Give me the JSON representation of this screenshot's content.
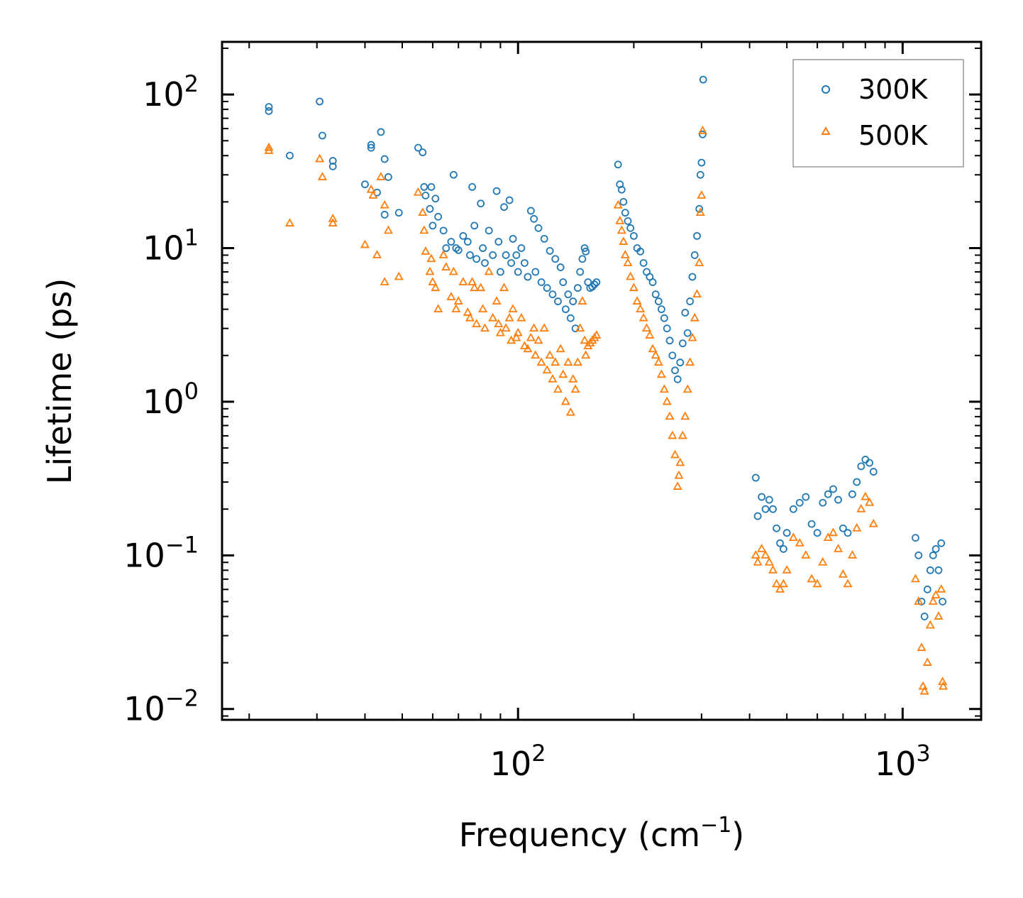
{
  "chart_data": {
    "type": "scatter",
    "title": "",
    "xlabel": "Frequency (cm",
    "xlabel_exponent": "−1",
    "xlabel_suffix": ")",
    "ylabel": "Lifetime (ps)",
    "xscale": "log",
    "yscale": "log",
    "xlim": [
      17,
      1600
    ],
    "ylim": [
      0.0085,
      220
    ],
    "x_ticks": [
      {
        "value": 100,
        "base": "10",
        "exp": "2"
      },
      {
        "value": 1000,
        "base": "10",
        "exp": "3"
      }
    ],
    "y_ticks": [
      {
        "value": 0.01,
        "base": "10",
        "exp": "−2"
      },
      {
        "value": 0.1,
        "base": "10",
        "exp": "−1"
      },
      {
        "value": 1,
        "base": "10",
        "exp": "0"
      },
      {
        "value": 10,
        "base": "10",
        "exp": "1"
      },
      {
        "value": 100,
        "base": "10",
        "exp": "2"
      }
    ],
    "legend_position": "top-right",
    "series": [
      {
        "name": "300K",
        "marker": "circle",
        "color": "#1f77b4",
        "points": [
          [
            22.5,
            83
          ],
          [
            22.5,
            78
          ],
          [
            25.5,
            40
          ],
          [
            30.5,
            90
          ],
          [
            31,
            54
          ],
          [
            33,
            37
          ],
          [
            33,
            34
          ],
          [
            40,
            26
          ],
          [
            41.5,
            47
          ],
          [
            41.5,
            45
          ],
          [
            43,
            23
          ],
          [
            44,
            57
          ],
          [
            45,
            38
          ],
          [
            45,
            16.5
          ],
          [
            46,
            29
          ],
          [
            49,
            17
          ],
          [
            55,
            45
          ],
          [
            56.5,
            42
          ],
          [
            57,
            25
          ],
          [
            57.5,
            22
          ],
          [
            59.5,
            25
          ],
          [
            59,
            18
          ],
          [
            60,
            14
          ],
          [
            61,
            21
          ],
          [
            62,
            16
          ],
          [
            64,
            13
          ],
          [
            65,
            10
          ],
          [
            67,
            11
          ],
          [
            68,
            30
          ],
          [
            69,
            10
          ],
          [
            70,
            9.7
          ],
          [
            72,
            12
          ],
          [
            74,
            11
          ],
          [
            75,
            9
          ],
          [
            76,
            25
          ],
          [
            77,
            14
          ],
          [
            78,
            8.5
          ],
          [
            80,
            19.5
          ],
          [
            81,
            10
          ],
          [
            82,
            8
          ],
          [
            84,
            13
          ],
          [
            86,
            9
          ],
          [
            88,
            23.5
          ],
          [
            89,
            11
          ],
          [
            90,
            7
          ],
          [
            92,
            18.5
          ],
          [
            93,
            9
          ],
          [
            95,
            20.5
          ],
          [
            96,
            8
          ],
          [
            97,
            11.5
          ],
          [
            99,
            9
          ],
          [
            100,
            7
          ],
          [
            102,
            10
          ],
          [
            104,
            8
          ],
          [
            106,
            6.5
          ],
          [
            108,
            17.5
          ],
          [
            110,
            15.5
          ],
          [
            111,
            7
          ],
          [
            113,
            13.5
          ],
          [
            115,
            6
          ],
          [
            117,
            11.5
          ],
          [
            119,
            5.5
          ],
          [
            121,
            9.6
          ],
          [
            123,
            5
          ],
          [
            125,
            8.5
          ],
          [
            127,
            4.5
          ],
          [
            129,
            7.5
          ],
          [
            131,
            6
          ],
          [
            133,
            4
          ],
          [
            135,
            5
          ],
          [
            137,
            3.5
          ],
          [
            139,
            4.5
          ],
          [
            141,
            3
          ],
          [
            143,
            5.5
          ],
          [
            145,
            7
          ],
          [
            147,
            8.5
          ],
          [
            149,
            10
          ],
          [
            150,
            9.5
          ],
          [
            152,
            6
          ],
          [
            154,
            5.5
          ],
          [
            156,
            5.6
          ],
          [
            158,
            5.8
          ],
          [
            160,
            6
          ],
          [
            182,
            35
          ],
          [
            184,
            26
          ],
          [
            186,
            24
          ],
          [
            188,
            20
          ],
          [
            190,
            17
          ],
          [
            193,
            15
          ],
          [
            196,
            13.5
          ],
          [
            200,
            12
          ],
          [
            204,
            10
          ],
          [
            208,
            9.5
          ],
          [
            212,
            8
          ],
          [
            216,
            7
          ],
          [
            220,
            6.5
          ],
          [
            224,
            6
          ],
          [
            228,
            5
          ],
          [
            232,
            4.5
          ],
          [
            236,
            4
          ],
          [
            240,
            3.5
          ],
          [
            244,
            3
          ],
          [
            248,
            2.5
          ],
          [
            252,
            2
          ],
          [
            256,
            1.6
          ],
          [
            260,
            1.4
          ],
          [
            264,
            1.8
          ],
          [
            268,
            2.4
          ],
          [
            272,
            3.8
          ],
          [
            276,
            2.8
          ],
          [
            280,
            4.5
          ],
          [
            284,
            6.5
          ],
          [
            288,
            9
          ],
          [
            292,
            12
          ],
          [
            296,
            18
          ],
          [
            298,
            30
          ],
          [
            300,
            36
          ],
          [
            302,
            55
          ],
          [
            303,
            125
          ],
          [
            415,
            0.32
          ],
          [
            420,
            0.18
          ],
          [
            430,
            0.24
          ],
          [
            440,
            0.2
          ],
          [
            450,
            0.23
          ],
          [
            460,
            0.2
          ],
          [
            470,
            0.15
          ],
          [
            480,
            0.12
          ],
          [
            490,
            0.11
          ],
          [
            500,
            0.14
          ],
          [
            520,
            0.2
          ],
          [
            540,
            0.22
          ],
          [
            560,
            0.24
          ],
          [
            580,
            0.16
          ],
          [
            600,
            0.14
          ],
          [
            620,
            0.22
          ],
          [
            640,
            0.25
          ],
          [
            660,
            0.27
          ],
          [
            680,
            0.23
          ],
          [
            700,
            0.15
          ],
          [
            720,
            0.14
          ],
          [
            740,
            0.25
          ],
          [
            760,
            0.3
          ],
          [
            780,
            0.38
          ],
          [
            800,
            0.42
          ],
          [
            820,
            0.4
          ],
          [
            840,
            0.35
          ],
          [
            1080,
            0.13
          ],
          [
            1100,
            0.1
          ],
          [
            1120,
            0.05
          ],
          [
            1140,
            0.04
          ],
          [
            1160,
            0.06
          ],
          [
            1180,
            0.08
          ],
          [
            1200,
            0.1
          ],
          [
            1220,
            0.11
          ],
          [
            1240,
            0.08
          ],
          [
            1260,
            0.12
          ],
          [
            1270,
            0.05
          ]
        ]
      },
      {
        "name": "500K",
        "marker": "triangle",
        "color": "#ff7f0e",
        "points": [
          [
            22.5,
            45
          ],
          [
            22.5,
            43
          ],
          [
            25.5,
            14.5
          ],
          [
            30.5,
            38
          ],
          [
            31,
            29
          ],
          [
            33,
            15.5
          ],
          [
            33,
            14.5
          ],
          [
            40,
            10.5
          ],
          [
            41.5,
            24
          ],
          [
            42,
            22
          ],
          [
            43,
            9
          ],
          [
            44,
            29
          ],
          [
            45,
            19
          ],
          [
            45,
            6
          ],
          [
            46,
            13
          ],
          [
            49,
            6.5
          ],
          [
            55,
            23
          ],
          [
            56.5,
            17
          ],
          [
            57,
            13
          ],
          [
            57.5,
            9.5
          ],
          [
            59.5,
            8.5
          ],
          [
            59,
            7
          ],
          [
            60,
            6
          ],
          [
            61,
            5.5
          ],
          [
            62,
            4
          ],
          [
            64,
            9
          ],
          [
            65,
            7.5
          ],
          [
            67,
            4.8
          ],
          [
            68,
            7
          ],
          [
            69,
            4
          ],
          [
            70,
            4.5
          ],
          [
            72,
            6
          ],
          [
            74,
            3.8
          ],
          [
            75,
            3.5
          ],
          [
            76,
            6
          ],
          [
            77,
            5.5
          ],
          [
            78,
            3.2
          ],
          [
            80,
            5.5
          ],
          [
            81,
            4
          ],
          [
            82,
            3
          ],
          [
            84,
            7
          ],
          [
            86,
            3.5
          ],
          [
            88,
            4.5
          ],
          [
            89,
            3.2
          ],
          [
            90,
            2.8
          ],
          [
            92,
            5.5
          ],
          [
            93,
            3
          ],
          [
            95,
            3.5
          ],
          [
            96,
            2.5
          ],
          [
            97,
            4
          ],
          [
            99,
            2.6
          ],
          [
            100,
            2.8
          ],
          [
            102,
            3.5
          ],
          [
            104,
            2.3
          ],
          [
            106,
            2.2
          ],
          [
            108,
            2.6
          ],
          [
            110,
            3
          ],
          [
            111,
            2
          ],
          [
            113,
            2.5
          ],
          [
            115,
            1.8
          ],
          [
            117,
            3
          ],
          [
            119,
            1.6
          ],
          [
            121,
            2
          ],
          [
            123,
            1.4
          ],
          [
            125,
            1.8
          ],
          [
            127,
            1.2
          ],
          [
            129,
            2.2
          ],
          [
            131,
            1.5
          ],
          [
            133,
            1
          ],
          [
            135,
            1.8
          ],
          [
            137,
            0.85
          ],
          [
            139,
            1.4
          ],
          [
            141,
            1.2
          ],
          [
            143,
            1.8
          ],
          [
            145,
            3
          ],
          [
            147,
            4.5
          ],
          [
            149,
            2.5
          ],
          [
            150,
            2
          ],
          [
            152,
            2.3
          ],
          [
            154,
            2.4
          ],
          [
            156,
            2.5
          ],
          [
            158,
            2.6
          ],
          [
            160,
            2.7
          ],
          [
            182,
            19
          ],
          [
            184,
            15
          ],
          [
            186,
            13
          ],
          [
            188,
            11
          ],
          [
            190,
            9
          ],
          [
            193,
            8
          ],
          [
            196,
            6.5
          ],
          [
            200,
            5.5
          ],
          [
            204,
            4.5
          ],
          [
            208,
            4
          ],
          [
            212,
            3.5
          ],
          [
            216,
            3
          ],
          [
            220,
            2.7
          ],
          [
            224,
            2.2
          ],
          [
            228,
            2
          ],
          [
            232,
            1.8
          ],
          [
            236,
            1.5
          ],
          [
            240,
            1.2
          ],
          [
            244,
            1
          ],
          [
            248,
            0.8
          ],
          [
            252,
            0.6
          ],
          [
            256,
            0.45
          ],
          [
            260,
            0.28
          ],
          [
            262,
            0.33
          ],
          [
            264,
            0.4
          ],
          [
            268,
            0.6
          ],
          [
            272,
            0.8
          ],
          [
            276,
            1.2
          ],
          [
            280,
            1.8
          ],
          [
            284,
            2.6
          ],
          [
            288,
            3.5
          ],
          [
            292,
            5
          ],
          [
            296,
            8
          ],
          [
            298,
            17
          ],
          [
            300,
            22
          ],
          [
            302,
            58
          ],
          [
            415,
            0.1
          ],
          [
            420,
            0.09
          ],
          [
            430,
            0.11
          ],
          [
            440,
            0.1
          ],
          [
            450,
            0.09
          ],
          [
            460,
            0.08
          ],
          [
            470,
            0.065
          ],
          [
            480,
            0.06
          ],
          [
            490,
            0.065
          ],
          [
            500,
            0.08
          ],
          [
            520,
            0.13
          ],
          [
            540,
            0.12
          ],
          [
            560,
            0.1
          ],
          [
            580,
            0.07
          ],
          [
            600,
            0.065
          ],
          [
            620,
            0.09
          ],
          [
            640,
            0.13
          ],
          [
            660,
            0.14
          ],
          [
            680,
            0.11
          ],
          [
            700,
            0.075
          ],
          [
            720,
            0.065
          ],
          [
            740,
            0.1
          ],
          [
            760,
            0.15
          ],
          [
            780,
            0.2
          ],
          [
            800,
            0.24
          ],
          [
            820,
            0.22
          ],
          [
            840,
            0.16
          ],
          [
            1080,
            0.07
          ],
          [
            1100,
            0.05
          ],
          [
            1120,
            0.025
          ],
          [
            1130,
            0.014
          ],
          [
            1140,
            0.013
          ],
          [
            1160,
            0.02
          ],
          [
            1180,
            0.035
          ],
          [
            1200,
            0.05
          ],
          [
            1220,
            0.055
          ],
          [
            1240,
            0.04
          ],
          [
            1260,
            0.06
          ],
          [
            1270,
            0.015
          ],
          [
            1275,
            0.014
          ]
        ]
      }
    ]
  }
}
